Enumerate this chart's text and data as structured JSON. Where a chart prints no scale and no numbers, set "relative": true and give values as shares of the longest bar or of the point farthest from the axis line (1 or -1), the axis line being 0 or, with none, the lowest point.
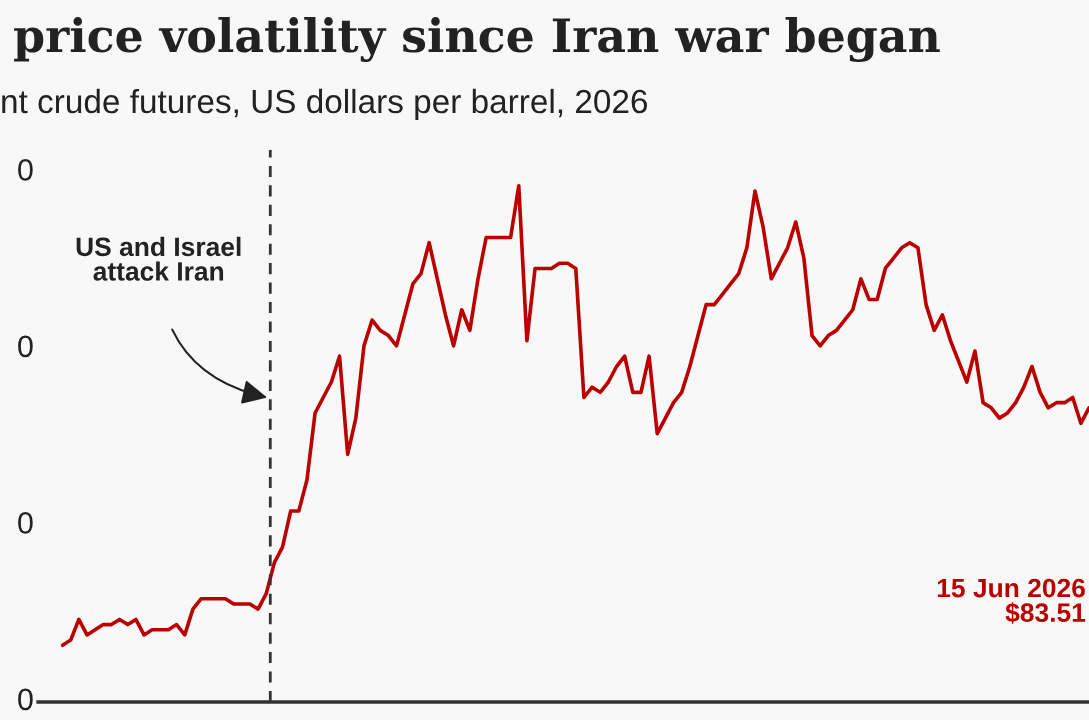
{
  "chart_data": {
    "type": "line",
    "title": "price volatility since Iran war began",
    "subtitle": "nt crude futures, US dollars per barrel, 2026",
    "relative": true,
    "categories": [
      null,
      null,
      null,
      null,
      null,
      null,
      null,
      null,
      null,
      null,
      null,
      null,
      null,
      null,
      null,
      null,
      null,
      null,
      null,
      null,
      null,
      null,
      null,
      null,
      null,
      null,
      null,
      null,
      null,
      null,
      null,
      null,
      null,
      null,
      null,
      null,
      null,
      null,
      null,
      null,
      null,
      null,
      null,
      null,
      null,
      null,
      null,
      null,
      null,
      null,
      null,
      null,
      null,
      null,
      null,
      null,
      null,
      null,
      null,
      null,
      null,
      null,
      null,
      null,
      null,
      null,
      null,
      null,
      null,
      null,
      null,
      null,
      null,
      null,
      null,
      null,
      null,
      null,
      null,
      null,
      null,
      null,
      null,
      null,
      null,
      null,
      null,
      null,
      null,
      null,
      null,
      null,
      null,
      null,
      null,
      null,
      null,
      null,
      null,
      null,
      null,
      null,
      null,
      null,
      null,
      null,
      null,
      null,
      null,
      null,
      null,
      null,
      null,
      null,
      null,
      null,
      null,
      null,
      null,
      null,
      null,
      null,
      null,
      null,
      null,
      null,
      null
    ],
    "series": [
      {
        "color": "#bb0000",
        "values": [
          0.11,
          0.12,
          0.16,
          0.13,
          0.14,
          0.15,
          0.15,
          0.16,
          0.15,
          0.16,
          0.13,
          0.14,
          0.14,
          0.14,
          0.15,
          0.13,
          0.18,
          0.2,
          0.2,
          0.2,
          0.2,
          0.19,
          0.19,
          0.19,
          0.18,
          0.21,
          0.27,
          0.3,
          0.37,
          0.37,
          0.43,
          0.56,
          0.59,
          0.62,
          0.67,
          0.48,
          0.55,
          0.69,
          0.74,
          0.72,
          0.71,
          0.69,
          0.75,
          0.81,
          0.83,
          0.89,
          0.82,
          0.75,
          0.69,
          0.76,
          0.72,
          0.82,
          0.9,
          0.9,
          0.9,
          0.9,
          1,
          0.7,
          0.84,
          0.84,
          0.84,
          0.85,
          0.85,
          0.84,
          0.59,
          0.61,
          0.6,
          0.62,
          0.65,
          0.67,
          0.6,
          0.6,
          0.67,
          0.52,
          0.55,
          0.58,
          0.6,
          0.65,
          0.71,
          0.77,
          0.77,
          0.79,
          0.81,
          0.83,
          0.88,
          0.99,
          0.92,
          0.82,
          0.85,
          0.88,
          0.93,
          0.86,
          0.71,
          0.69,
          0.71,
          0.72,
          0.74,
          0.76,
          0.82,
          0.78,
          0.78,
          0.84,
          0.86,
          0.88,
          0.89,
          0.88,
          0.77,
          0.72,
          0.75,
          0.7,
          0.66,
          0.62,
          0.68,
          0.58,
          0.57,
          0.55,
          0.56,
          0.58,
          0.61,
          0.65,
          0.6,
          0.57,
          0.58,
          0.58,
          0.59,
          0.54,
          0.57
        ]
      }
    ],
    "legend": false,
    "line_style": "solid",
    "marker": "none",
    "annotations": [
      "0",
      "0",
      "0",
      "0",
      "US and Israel\nattack Iran",
      "15 Jun 2026\n$83.51"
    ]
  }
}
